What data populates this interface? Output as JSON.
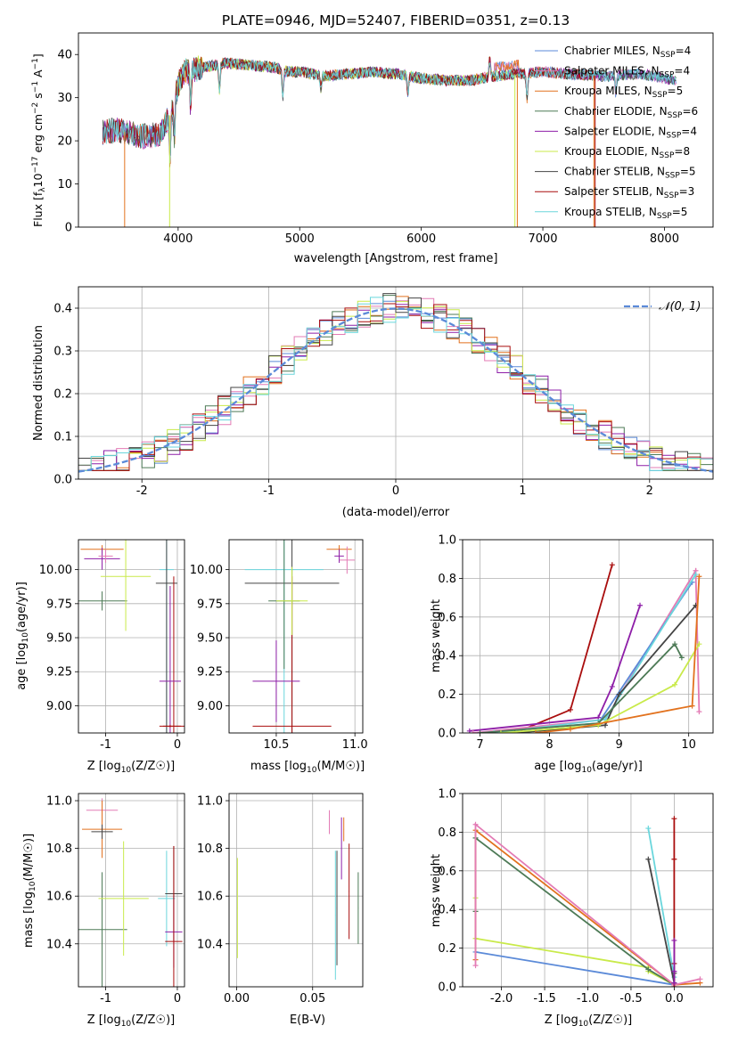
{
  "title": "PLATE=0946, MJD=52407, FIBERID=0351, z=0.13",
  "colors": {
    "chab_miles": "#5b8ad8",
    "salp_miles": "#e37bb5",
    "krou_miles": "#e2721e",
    "chab_elodie": "#4d7a56",
    "salp_elodie": "#8e1ea8",
    "krou_elodie": "#c9ea4a",
    "chab_stelib": "#444444",
    "salp_stelib": "#a90d0d",
    "krou_stelib": "#6ad6dc",
    "normal": "#5b8ad8"
  },
  "chart_data": [
    {
      "id": "spectrum",
      "type": "line",
      "title": "PLATE=0946, MJD=52407, FIBERID=0351, z=0.13",
      "xlabel": "wavelength [Angstrom, rest frame]",
      "ylabel": "Flux [f_λ 10^-17 erg cm^-2 s^-1 A^-1]",
      "xlim": [
        3180,
        8400
      ],
      "ylim": [
        0,
        45
      ],
      "xticks": [
        "4000",
        "5000",
        "6000",
        "7000",
        "8000"
      ],
      "yticks": [
        "0",
        "10",
        "20",
        "30",
        "40"
      ],
      "legend_position": "top-right",
      "legend": [
        {
          "key": "chab_miles",
          "pre": "Chabrier MILES, N",
          "sub": "SSP",
          "post": "=4"
        },
        {
          "key": "salp_miles",
          "pre": "Salpeter MILES, N",
          "sub": "SSP",
          "post": "=4"
        },
        {
          "key": "krou_miles",
          "pre": "Kroupa MILES, N",
          "sub": "SSP",
          "post": "=5"
        },
        {
          "key": "chab_elodie",
          "pre": "Chabrier ELODIE, N",
          "sub": "SSP",
          "post": "=6"
        },
        {
          "key": "salp_elodie",
          "pre": "Salpeter ELODIE, N",
          "sub": "SSP",
          "post": "=4"
        },
        {
          "key": "krou_elodie",
          "pre": "Kroupa ELODIE, N",
          "sub": "SSP",
          "post": "=8"
        },
        {
          "key": "chab_stelib",
          "pre": "Chabrier STELIB, N",
          "sub": "SSP",
          "post": "=5"
        },
        {
          "key": "salp_stelib",
          "pre": "Salpeter STELIB, N",
          "sub": "SSP",
          "post": "=3"
        },
        {
          "key": "krou_stelib",
          "pre": "Kroupa STELIB, N",
          "sub": "SSP",
          "post": "=5"
        }
      ],
      "continuum": [
        [
          3380,
          22
        ],
        [
          3500,
          22.5
        ],
        [
          3700,
          21
        ],
        [
          3850,
          21.5
        ],
        [
          3950,
          27
        ],
        [
          4000,
          33
        ],
        [
          4050,
          36
        ],
        [
          4200,
          37
        ],
        [
          4400,
          38
        ],
        [
          4600,
          37.5
        ],
        [
          4800,
          37
        ],
        [
          4900,
          36
        ],
        [
          5000,
          36
        ],
        [
          5200,
          35
        ],
        [
          5400,
          35.5
        ],
        [
          5600,
          36
        ],
        [
          5800,
          35.5
        ],
        [
          6000,
          34.5
        ],
        [
          6200,
          34
        ],
        [
          6400,
          34
        ],
        [
          6600,
          35
        ],
        [
          6800,
          35.5
        ],
        [
          7000,
          36
        ],
        [
          7200,
          35.5
        ],
        [
          7500,
          35
        ],
        [
          7800,
          35.5
        ],
        [
          8000,
          34.5
        ],
        [
          8100,
          34
        ]
      ],
      "edges": [
        {
          "key": "krou_miles",
          "x": 3560
        },
        {
          "key": "krou_elodie",
          "x": 3930
        },
        {
          "key": "krou_miles",
          "x": 6790
        },
        {
          "key": "krou_elodie",
          "x": 6770
        },
        {
          "key": "salp_stelib",
          "x": 7430
        },
        {
          "key": "krou_miles",
          "x": 7420
        }
      ]
    },
    {
      "id": "residuals",
      "type": "bar",
      "xlabel": "(data-model)/error",
      "ylabel": "Normed distribution",
      "xlim": [
        -2.5,
        2.5
      ],
      "ylim": [
        0,
        0.45
      ],
      "xticks": [
        "-2",
        "-1",
        "0",
        "1",
        "2"
      ],
      "yticks": [
        "0.0",
        "0.1",
        "0.2",
        "0.3",
        "0.4"
      ],
      "legend": "𝒩(0, 1)",
      "legend_position": "top-right"
    },
    {
      "id": "age_vs_Z",
      "type": "scatter",
      "xlabel_pre": "Z [log",
      "xlabel_sub": "10",
      "xlabel_post": "(Z/Z☉)]",
      "ylabel_pre": "age  [log",
      "ylabel_sub": "10",
      "ylabel_post": "(age/yr)]",
      "xlim": [
        -1.38,
        0.1
      ],
      "ylim": [
        8.8,
        10.22
      ],
      "xticks": [
        "-1",
        "0"
      ],
      "yticks": [
        "9.00",
        "9.25",
        "9.50",
        "9.75",
        "10.00"
      ]
    },
    {
      "id": "age_vs_mass",
      "type": "scatter",
      "xlabel_pre": "mass [log",
      "xlabel_sub": "10",
      "xlabel_post": "(M/M☉)]",
      "xlim": [
        10.2,
        11.05
      ],
      "ylim": [
        8.8,
        10.22
      ],
      "xticks": [
        "10.5",
        "11.0"
      ],
      "yticks": [
        "9.00",
        "9.25",
        "9.50",
        "9.75",
        "10.00"
      ]
    },
    {
      "id": "mw_vs_age",
      "type": "line",
      "xlabel_pre": "age  [log",
      "xlabel_sub": "10",
      "xlabel_post": "(age/yr)]",
      "ylabel": "mass weight",
      "xlim": [
        6.75,
        10.35
      ],
      "ylim": [
        0,
        1.0
      ],
      "xticks": [
        "7",
        "8",
        "9",
        "10"
      ],
      "yticks": [
        "0.0",
        "0.2",
        "0.4",
        "0.6",
        "0.8",
        "1.0"
      ]
    },
    {
      "id": "mass_vs_Z",
      "type": "scatter",
      "xlabel_pre": "Z [log",
      "xlabel_sub": "10",
      "xlabel_post": "(Z/Z☉)]",
      "ylabel_pre": "mass [log",
      "ylabel_sub": "10",
      "ylabel_post": "(M/M☉)]",
      "xlim": [
        -1.38,
        0.1
      ],
      "ylim": [
        10.22,
        11.03
      ],
      "xticks": [
        "-1",
        "0"
      ],
      "yticks": [
        "10.4",
        "10.6",
        "10.8",
        "11.0"
      ]
    },
    {
      "id": "mass_vs_ebv",
      "type": "scatter",
      "xlabel": "E(B-V)",
      "xlim": [
        -0.005,
        0.083
      ],
      "ylim": [
        10.22,
        11.03
      ],
      "xticks": [
        "0.00",
        "0.05"
      ],
      "yticks": [
        "10.4",
        "10.6",
        "10.8",
        "11.0"
      ]
    },
    {
      "id": "mw_vs_Z",
      "type": "line",
      "xlabel_pre": "Z [log",
      "xlabel_sub": "10",
      "xlabel_post": "(Z/Z☉)]",
      "ylabel": "mass weight",
      "xlim": [
        -2.45,
        0.45
      ],
      "ylim": [
        0,
        1.0
      ],
      "xticks": [
        "-2.0",
        "-1.5",
        "-1.0",
        "-0.5",
        "0.0"
      ],
      "yticks": [
        "0.0",
        "0.2",
        "0.4",
        "0.6",
        "0.8",
        "1.0"
      ]
    }
  ]
}
